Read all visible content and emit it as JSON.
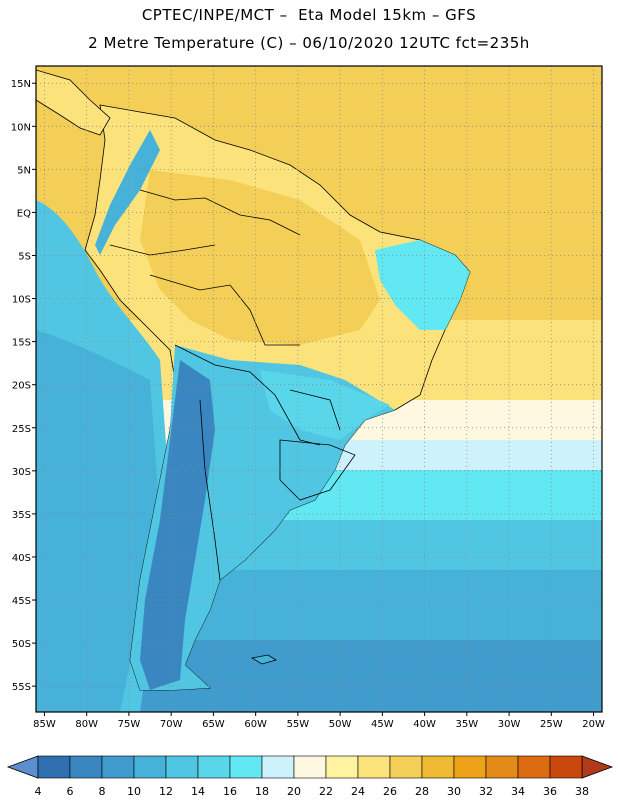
{
  "header": {
    "line1": "CPTEC/INPE/MCT –  Eta Model 15km – GFS",
    "line2": "2 Metre Temperature (C) – 06/10/2020 12UTC fct=235h"
  },
  "map": {
    "lon_labels": [
      "85W",
      "80W",
      "75W",
      "70W",
      "65W",
      "60W",
      "55W",
      "50W",
      "45W",
      "40W",
      "35W",
      "30W",
      "25W",
      "20W"
    ],
    "lat_labels": [
      "15N",
      "10N",
      "5N",
      "EQ",
      "5S",
      "10S",
      "15S",
      "20S",
      "25S",
      "30S",
      "35S",
      "40S",
      "45S",
      "50S",
      "55S"
    ],
    "lon_range": [
      -86,
      -19
    ],
    "lat_range": [
      17,
      -58
    ]
  },
  "colorbar": {
    "labels": [
      "4",
      "6",
      "8",
      "10",
      "12",
      "14",
      "16",
      "18",
      "20",
      "22",
      "24",
      "26",
      "28",
      "30",
      "32",
      "34",
      "36",
      "38"
    ],
    "colors": [
      "#2f6fb0",
      "#3a86c0",
      "#3f9ccc",
      "#46b2d9",
      "#50c6e2",
      "#5ad6ea",
      "#62e8f2",
      "#cdf2fb",
      "#fff8e1",
      "#fff2a0",
      "#fbe27a",
      "#f4cf57",
      "#f0b934",
      "#eda21a",
      "#e48a18",
      "#dc6b12",
      "#c9480d"
    ],
    "low_color": "#5b8fcf",
    "high_color": "#b03a1a"
  }
}
